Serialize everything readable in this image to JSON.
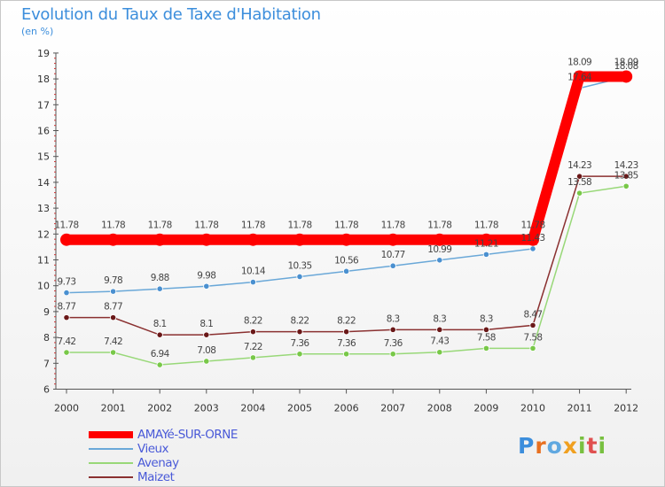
{
  "title": "Evolution du Taux de Taxe d'Habitation",
  "subtitle": "(en %)",
  "logo": "Proxiti",
  "chart_data": {
    "type": "line",
    "title": "Evolution du Taux de Taxe d'Habitation",
    "ylabel": "(en %)",
    "xlabel": "",
    "ylim": [
      6,
      19
    ],
    "yticks": [
      "6",
      "7",
      "8",
      "9",
      "10",
      "11",
      "12",
      "13",
      "14",
      "15",
      "16",
      "17",
      "18",
      "19"
    ],
    "categories": [
      "2000",
      "2001",
      "2002",
      "2003",
      "2004",
      "2005",
      "2006",
      "2007",
      "2008",
      "2009",
      "2010",
      "2011",
      "2012"
    ],
    "grid": false,
    "legend_position": "bottom-left",
    "series": [
      {
        "name": "AMAYé-SUR-ORNE",
        "color": "#ff0000",
        "marker_color": "#ff0000",
        "emphasis": true,
        "values": [
          11.78,
          11.78,
          11.78,
          11.78,
          11.78,
          11.78,
          11.78,
          11.78,
          11.78,
          11.78,
          11.78,
          18.09,
          18.09
        ],
        "labels": [
          "11.78",
          "11.78",
          "11.78",
          "11.78",
          "11.78",
          "11.78",
          "11.78",
          "11.78",
          "11.78",
          "11.78",
          "11.78",
          "18.09",
          "18.09"
        ]
      },
      {
        "name": "Vieux",
        "color": "#6aa8d8",
        "marker_color": "#4a90d0",
        "values": [
          9.73,
          9.78,
          9.88,
          9.98,
          10.14,
          10.35,
          10.56,
          10.77,
          10.99,
          11.21,
          11.43,
          17.64,
          18.08
        ],
        "labels": [
          "9.73",
          "9.78",
          "9.88",
          "9.98",
          "10.14",
          "10.35",
          "10.56",
          "10.77",
          "10.99",
          "11.21",
          "11.43",
          "17.64",
          "18.08"
        ]
      },
      {
        "name": "Avenay",
        "color": "#98d878",
        "marker_color": "#78c848",
        "values": [
          7.42,
          7.42,
          6.94,
          7.08,
          7.22,
          7.36,
          7.36,
          7.36,
          7.43,
          7.58,
          7.58,
          13.58,
          13.85
        ],
        "labels": [
          "7.42",
          "7.42",
          "6.94",
          "7.08",
          "7.22",
          "7.36",
          "7.36",
          "7.36",
          "7.43",
          "7.58",
          "7.58",
          "13.58",
          "13.85"
        ]
      },
      {
        "name": "Maizet",
        "color": "#8a3030",
        "marker_color": "#6a1818",
        "values": [
          8.77,
          8.77,
          8.1,
          8.1,
          8.22,
          8.22,
          8.22,
          8.3,
          8.3,
          8.3,
          8.47,
          14.23,
          14.23
        ],
        "labels": [
          "8.77",
          "8.77",
          "8.1",
          "8.1",
          "8.22",
          "8.22",
          "8.22",
          "8.3",
          "8.3",
          "8.3",
          "8.47",
          "14.23",
          "14.23"
        ]
      }
    ]
  }
}
